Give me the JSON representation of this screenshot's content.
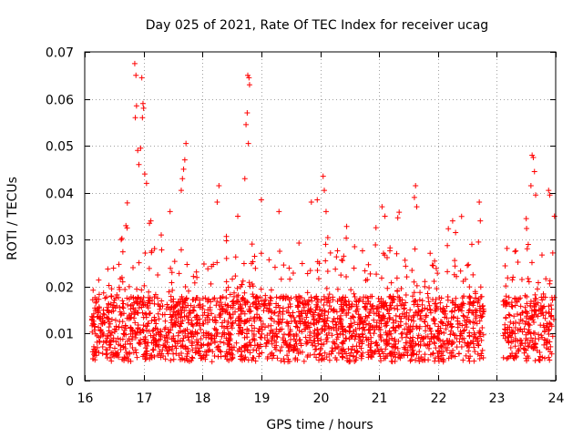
{
  "chart_data": {
    "type": "scatter",
    "title": "Day 025 of 2021, Rate Of TEC Index for receiver ucag",
    "xlabel": "GPS time / hours",
    "ylabel": "ROTI / TECUs",
    "xlim": [
      16,
      24
    ],
    "ylim": [
      0,
      0.07
    ],
    "x_ticks": [
      16,
      17,
      18,
      19,
      20,
      21,
      22,
      23,
      24
    ],
    "x_tick_labels": [
      "16",
      "17",
      "18",
      "19",
      "20",
      "21",
      "22",
      "23",
      "24"
    ],
    "y_ticks": [
      0,
      0.01,
      0.02,
      0.03,
      0.04,
      0.05,
      0.06,
      0.07
    ],
    "y_tick_labels": [
      "0",
      "0.01",
      "0.02",
      "0.03",
      "0.04",
      "0.05",
      "0.06",
      "0.07"
    ],
    "grid": true,
    "marker": "+",
    "marker_color": "#ff0000",
    "data_gap_hours": [
      22.78,
      23.1
    ],
    "series": [
      {
        "name": "ROTI",
        "points": [
          [
            16.85,
            0.0675
          ],
          [
            16.87,
            0.065
          ],
          [
            16.88,
            0.0585
          ],
          [
            16.86,
            0.056
          ],
          [
            16.9,
            0.049
          ],
          [
            16.92,
            0.046
          ],
          [
            16.97,
            0.0645
          ],
          [
            16.99,
            0.059
          ],
          [
            17.0,
            0.058
          ],
          [
            16.98,
            0.056
          ],
          [
            16.95,
            0.0495
          ],
          [
            17.02,
            0.044
          ],
          [
            17.05,
            0.042
          ],
          [
            17.72,
            0.0505
          ],
          [
            17.7,
            0.047
          ],
          [
            17.68,
            0.045
          ],
          [
            17.66,
            0.043
          ],
          [
            17.64,
            0.0405
          ],
          [
            18.77,
            0.065
          ],
          [
            18.79,
            0.0645
          ],
          [
            18.8,
            0.063
          ],
          [
            18.76,
            0.057
          ],
          [
            18.74,
            0.0545
          ],
          [
            18.78,
            0.0505
          ],
          [
            18.72,
            0.043
          ],
          [
            20.05,
            0.0435
          ],
          [
            20.07,
            0.0405
          ],
          [
            19.95,
            0.0385
          ],
          [
            21.62,
            0.0415
          ],
          [
            21.6,
            0.039
          ],
          [
            21.64,
            0.037
          ],
          [
            23.6,
            0.048
          ],
          [
            23.62,
            0.0475
          ],
          [
            23.64,
            0.0445
          ],
          [
            23.58,
            0.0415
          ],
          [
            23.66,
            0.0395
          ],
          [
            23.88,
            0.0405
          ],
          [
            23.9,
            0.0395
          ],
          [
            16.7,
            0.033
          ],
          [
            16.72,
            0.0325
          ],
          [
            16.62,
            0.03
          ],
          [
            17.1,
            0.0335
          ],
          [
            17.3,
            0.031
          ],
          [
            17.45,
            0.036
          ],
          [
            18.28,
            0.0415
          ],
          [
            18.25,
            0.038
          ],
          [
            18.6,
            0.035
          ],
          [
            19.0,
            0.0385
          ],
          [
            19.3,
            0.036
          ],
          [
            19.85,
            0.038
          ],
          [
            20.1,
            0.036
          ],
          [
            20.4,
            0.0265
          ],
          [
            20.8,
            0.0215
          ],
          [
            21.05,
            0.037
          ],
          [
            21.1,
            0.035
          ],
          [
            21.3,
            0.027
          ],
          [
            22.25,
            0.034
          ],
          [
            22.3,
            0.0315
          ],
          [
            22.5,
            0.0245
          ],
          [
            22.72,
            0.034
          ],
          [
            23.5,
            0.0345
          ],
          [
            23.98,
            0.035
          ]
        ]
      }
    ]
  }
}
